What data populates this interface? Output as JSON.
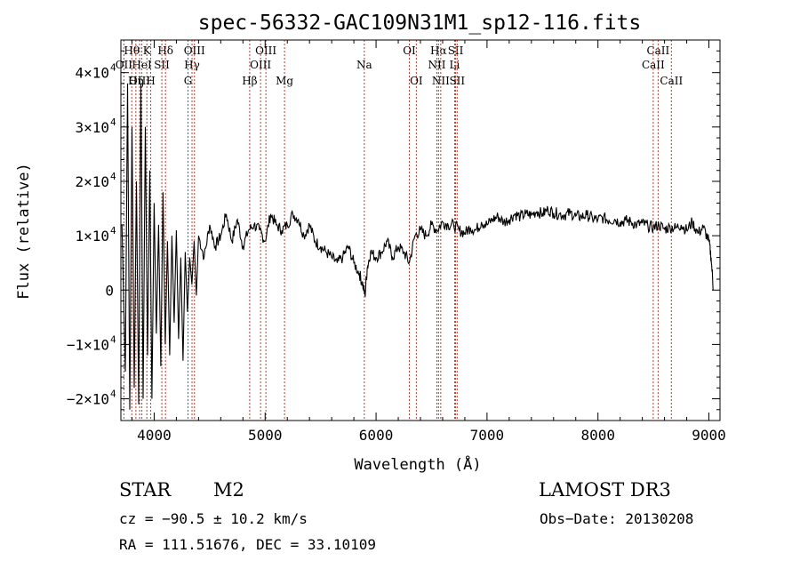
{
  "chart_data": {
    "type": "line",
    "title": "spec-56332-GAC109N31M1_sp12-116.fits",
    "xlabel": "Wavelength (Å)",
    "ylabel": "Flux (relative)",
    "xlim": [
      3700,
      9100
    ],
    "ylim": [
      -24000,
      46000
    ],
    "xticks": [
      {
        "value": 4000,
        "label": "4000"
      },
      {
        "value": 5000,
        "label": "5000"
      },
      {
        "value": 6000,
        "label": "6000"
      },
      {
        "value": 7000,
        "label": "7000"
      },
      {
        "value": 8000,
        "label": "8000"
      },
      {
        "value": 9000,
        "label": "9000"
      }
    ],
    "yticks": [
      {
        "value": -20000,
        "label": "−2×10",
        "exp": "4"
      },
      {
        "value": -10000,
        "label": "−1×10",
        "exp": "4"
      },
      {
        "value": 0,
        "label": "0",
        "exp": ""
      },
      {
        "value": 10000,
        "label": "1×10",
        "exp": "4"
      },
      {
        "value": 20000,
        "label": "2×10",
        "exp": "4"
      },
      {
        "value": 30000,
        "label": "3×10",
        "exp": "4"
      },
      {
        "value": 40000,
        "label": "4×10",
        "exp": "4"
      }
    ],
    "spectrum": {
      "name": "flux",
      "x": [
        3710,
        3740,
        3760,
        3780,
        3800,
        3820,
        3840,
        3860,
        3880,
        3900,
        3920,
        3940,
        3960,
        3980,
        4000,
        4020,
        4040,
        4060,
        4080,
        4100,
        4120,
        4140,
        4160,
        4180,
        4200,
        4220,
        4240,
        4260,
        4280,
        4300,
        4320,
        4340,
        4360,
        4380,
        4400,
        4450,
        4500,
        4550,
        4600,
        4650,
        4700,
        4750,
        4800,
        4850,
        4900,
        4950,
        5000,
        5050,
        5100,
        5150,
        5200,
        5250,
        5300,
        5350,
        5400,
        5450,
        5500,
        5550,
        5600,
        5650,
        5700,
        5750,
        5800,
        5850,
        5880,
        5900,
        5920,
        5950,
        6000,
        6050,
        6100,
        6150,
        6200,
        6250,
        6300,
        6350,
        6400,
        6450,
        6500,
        6550,
        6600,
        6650,
        6700,
        6750,
        6800,
        6850,
        6900,
        6950,
        7000,
        7050,
        7100,
        7150,
        7200,
        7250,
        7300,
        7350,
        7400,
        7450,
        7500,
        7550,
        7600,
        7650,
        7700,
        7750,
        7800,
        7850,
        7900,
        7950,
        8000,
        8050,
        8100,
        8150,
        8200,
        8250,
        8300,
        8350,
        8400,
        8450,
        8500,
        8550,
        8600,
        8650,
        8700,
        8750,
        8800,
        8850,
        8900,
        8950,
        9000,
        9020,
        9040
      ],
      "y": [
        12000,
        -15000,
        38000,
        -22000,
        30000,
        -18000,
        20000,
        -21000,
        38000,
        -20000,
        30000,
        -12000,
        22000,
        -20000,
        16000,
        -8000,
        12000,
        -14000,
        18000,
        -10000,
        9000,
        -12000,
        10000,
        -6000,
        11000,
        -9000,
        6000,
        -13000,
        7000,
        -4000,
        6000,
        1000,
        9000,
        -1000,
        10000,
        6000,
        12000,
        8000,
        10000,
        14000,
        9000,
        13000,
        8000,
        11000,
        12000,
        11000,
        9000,
        14000,
        12000,
        11000,
        12000,
        14000,
        13000,
        10000,
        12000,
        9000,
        8000,
        7000,
        6000,
        5000,
        6000,
        8000,
        5000,
        3000,
        1000,
        -1000,
        4000,
        7000,
        6000,
        7000,
        9000,
        6000,
        8000,
        7000,
        5000,
        10000,
        11000,
        10000,
        12000,
        11000,
        12500,
        12000,
        12000,
        11000,
        10500,
        11500,
        11000,
        12500,
        12000,
        13000,
        13500,
        12500,
        13000,
        14000,
        13500,
        14000,
        13800,
        14500,
        14000,
        14800,
        14200,
        14000,
        13800,
        14200,
        13600,
        13500,
        13800,
        13200,
        13000,
        13300,
        12800,
        13000,
        12500,
        12800,
        12500,
        12000,
        12300,
        11800,
        11500,
        12000,
        11200,
        11600,
        11400,
        12000,
        11000,
        12500,
        10500,
        11500,
        9000,
        6000,
        0
      ]
    },
    "line_markers": [
      {
        "label": "Hθ",
        "x": 3798,
        "row": 1
      },
      {
        "label": "OII",
        "x": 3727,
        "row": 2
      },
      {
        "label": "OIII",
        "x": 3869,
        "row": 3
      },
      {
        "label": "K",
        "x": 3934,
        "row": 1
      },
      {
        "label": "HeI",
        "x": 3889,
        "row": 2
      },
      {
        "label": "Hη",
        "x": 3835,
        "row": 3
      },
      {
        "label": "H",
        "x": 3969,
        "row": 3
      },
      {
        "label": "SII",
        "x": 4069,
        "row": 2
      },
      {
        "label": "Hδ",
        "x": 4102,
        "row": 1
      },
      {
        "label": "OIII",
        "x": 4363,
        "row": 1
      },
      {
        "label": "Hγ",
        "x": 4341,
        "row": 2
      },
      {
        "label": "G",
        "x": 4305,
        "row": 3
      },
      {
        "label": "Hβ",
        "x": 4861,
        "row": 3
      },
      {
        "label": "OIII",
        "x": 5007,
        "row": 1
      },
      {
        "label": "OIII",
        "x": 4959,
        "row": 2
      },
      {
        "label": "Mg",
        "x": 5175,
        "row": 3
      },
      {
        "label": "Na",
        "x": 5894,
        "row": 2
      },
      {
        "label": "OI",
        "x": 6300,
        "row": 1
      },
      {
        "label": "OI",
        "x": 6363,
        "row": 3
      },
      {
        "label": "Hα",
        "x": 6563,
        "row": 1
      },
      {
        "label": "SII",
        "x": 6717,
        "row": 1
      },
      {
        "label": "NII",
        "x": 6548,
        "row": 2
      },
      {
        "label": "Li",
        "x": 6708,
        "row": 2
      },
      {
        "label": "NII",
        "x": 6583,
        "row": 3
      },
      {
        "label": "SII",
        "x": 6731,
        "row": 3
      },
      {
        "label": "CaII",
        "x": 8542,
        "row": 1
      },
      {
        "label": "CaII",
        "x": 8498,
        "row": 2
      },
      {
        "label": "CaII",
        "x": 8662,
        "row": 3
      }
    ],
    "line_marker_color": "#c0392b"
  },
  "info": {
    "class_label": "STAR",
    "subclass": "M2",
    "survey": "LAMOST DR3",
    "cz": "cz = −90.5 ± 10.2 km/s",
    "obs_date": "Obs−Date: 20130208",
    "coords": "RA = 111.51676, DEC =  33.10109"
  }
}
